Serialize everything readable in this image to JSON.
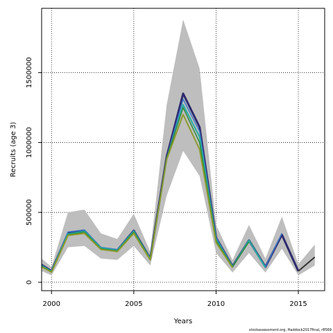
{
  "chart_data": {
    "type": "line",
    "xlabel": "Years",
    "ylabel": "Recruits (age 3)",
    "xlim": [
      1999.4,
      2016.6
    ],
    "ylim": [
      -60000,
      1960000
    ],
    "x_ticks": [
      2000,
      2005,
      2010,
      2015
    ],
    "y_ticks": [
      0,
      500000,
      1000000,
      1500000
    ],
    "grid": "dotted",
    "ci_band": {
      "color": "#bebebe",
      "x": [
        1999,
        2000,
        2001,
        2002,
        2003,
        2004,
        2005,
        2006,
        2007,
        2008,
        2009,
        2010,
        2011,
        2012,
        2013,
        2014,
        2015,
        2016
      ],
      "upper": [
        210000,
        110000,
        500000,
        520000,
        350000,
        310000,
        490000,
        220000,
        1270000,
        1880000,
        1530000,
        410000,
        160000,
        410000,
        170000,
        470000,
        130000,
        270000
      ],
      "lower": [
        100000,
        50000,
        250000,
        260000,
        170000,
        160000,
        260000,
        120000,
        620000,
        940000,
        760000,
        210000,
        70000,
        210000,
        70000,
        240000,
        50000,
        120000
      ]
    },
    "series": [
      {
        "color": "#2d2a6e",
        "width": 3,
        "x": [
          1999,
          2000,
          2001,
          2002,
          2003,
          2004,
          2005,
          2006,
          2007,
          2008,
          2009,
          2010,
          2011,
          2012,
          2013,
          2014,
          2015
        ],
        "values": [
          155000,
          80000,
          350000,
          370000,
          245000,
          230000,
          370000,
          170000,
          900000,
          1350000,
          1110000,
          320000,
          115000,
          300000,
          110000,
          340000,
          80000
        ]
      },
      {
        "color": "#3a78c8",
        "width": 1.5,
        "x": [
          1999,
          2000,
          2001,
          2002,
          2003,
          2004,
          2005,
          2006,
          2007,
          2008,
          2009,
          2010,
          2011,
          2012,
          2013,
          2014
        ],
        "values": [
          150000,
          80000,
          360000,
          375000,
          250000,
          235000,
          370000,
          170000,
          890000,
          1310000,
          1080000,
          320000,
          115000,
          300000,
          110000,
          350000
        ]
      },
      {
        "color": "#24b0a6",
        "width": 2,
        "x": [
          1999,
          2000,
          2001,
          2002,
          2003,
          2004,
          2005,
          2006,
          2007,
          2008,
          2009,
          2010,
          2011,
          2012,
          2013
        ],
        "values": [
          145000,
          78000,
          345000,
          365000,
          245000,
          228000,
          365000,
          168000,
          880000,
          1270000,
          1040000,
          305000,
          112000,
          300000,
          105000
        ]
      },
      {
        "color": "#2e8a3a",
        "width": 1.5,
        "x": [
          1999,
          2000,
          2001,
          2002,
          2003,
          2004,
          2005,
          2006,
          2007,
          2008,
          2009,
          2010,
          2011,
          2012
        ],
        "values": [
          142000,
          76000,
          340000,
          360000,
          240000,
          225000,
          360000,
          165000,
          890000,
          1250000,
          1000000,
          300000,
          110000,
          290000
        ]
      },
      {
        "color": "#8c9a2a",
        "width": 2,
        "x": [
          1999,
          2000,
          2001,
          2002,
          2003,
          2004,
          2005,
          2006,
          2007,
          2008,
          2009,
          2010,
          2011
        ],
        "values": [
          135000,
          72000,
          335000,
          350000,
          235000,
          220000,
          350000,
          160000,
          880000,
          1200000,
          950000,
          285000,
          105000
        ]
      },
      {
        "color": "#333333",
        "width": 2,
        "x": [
          2015,
          2016
        ],
        "values": [
          80000,
          180000
        ]
      }
    ]
  },
  "footnote": "stockassessment.org, Haddock2017final, r8569"
}
